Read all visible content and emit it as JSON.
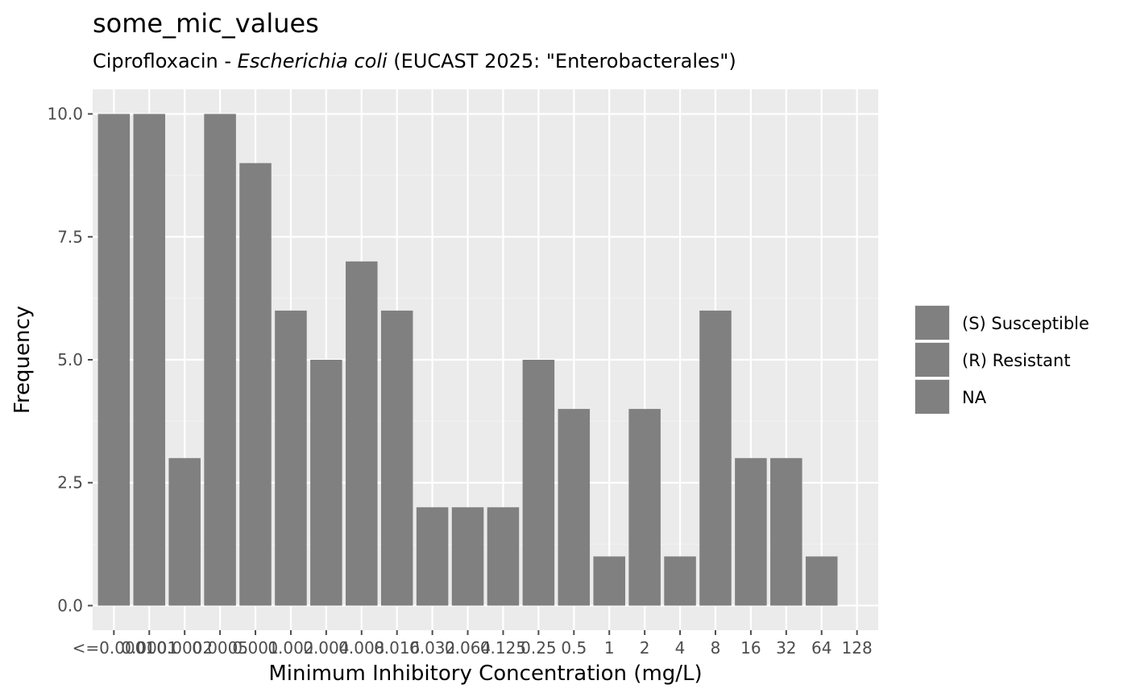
{
  "colors": {
    "panel_background": "#ebebeb",
    "grid_major": "#ffffff",
    "grid_minor": "#f2f2f2",
    "bar_fill": "#808080",
    "tick_color": "#4d4d4d",
    "text_color": "#000000"
  },
  "chart_data": {
    "type": "bar",
    "title": "some_mic_values",
    "subtitle": {
      "prefix": "Ciprofloxacin - ",
      "organism": "Escherichia coli",
      "suffix": " (EUCAST 2025: \"Enterobacterales\")"
    },
    "xlabel": "Minimum Inhibitory Concentration (mg/L)",
    "ylabel": "Frequency",
    "categories": [
      "<=0.0001",
      "0.0001",
      "0.0002",
      "0.0005",
      "0.001",
      "0.002",
      "0.004",
      "0.008",
      "0.016",
      "0.032",
      "0.064",
      "0.125",
      "0.25",
      "0.5",
      "1",
      "2",
      "4",
      "8",
      "16",
      "32",
      "64",
      "128"
    ],
    "values": [
      10,
      10,
      3,
      10,
      9,
      6,
      5,
      7,
      6,
      2,
      2,
      2,
      5,
      4,
      1,
      4,
      1,
      6,
      3,
      3,
      1,
      0
    ],
    "ylim": [
      -0.5,
      10.5
    ],
    "yticks": [
      0,
      2.5,
      5,
      7.5,
      10
    ],
    "ytick_labels": [
      "0.0",
      "2.5",
      "5.0",
      "7.5",
      "10.0"
    ],
    "grid": true,
    "legend_position": "right",
    "legend": [
      {
        "label": "(S) Susceptible",
        "color": "#808080"
      },
      {
        "label": "(R) Resistant",
        "color": "#808080"
      },
      {
        "label": "NA",
        "color": "#808080"
      }
    ]
  }
}
